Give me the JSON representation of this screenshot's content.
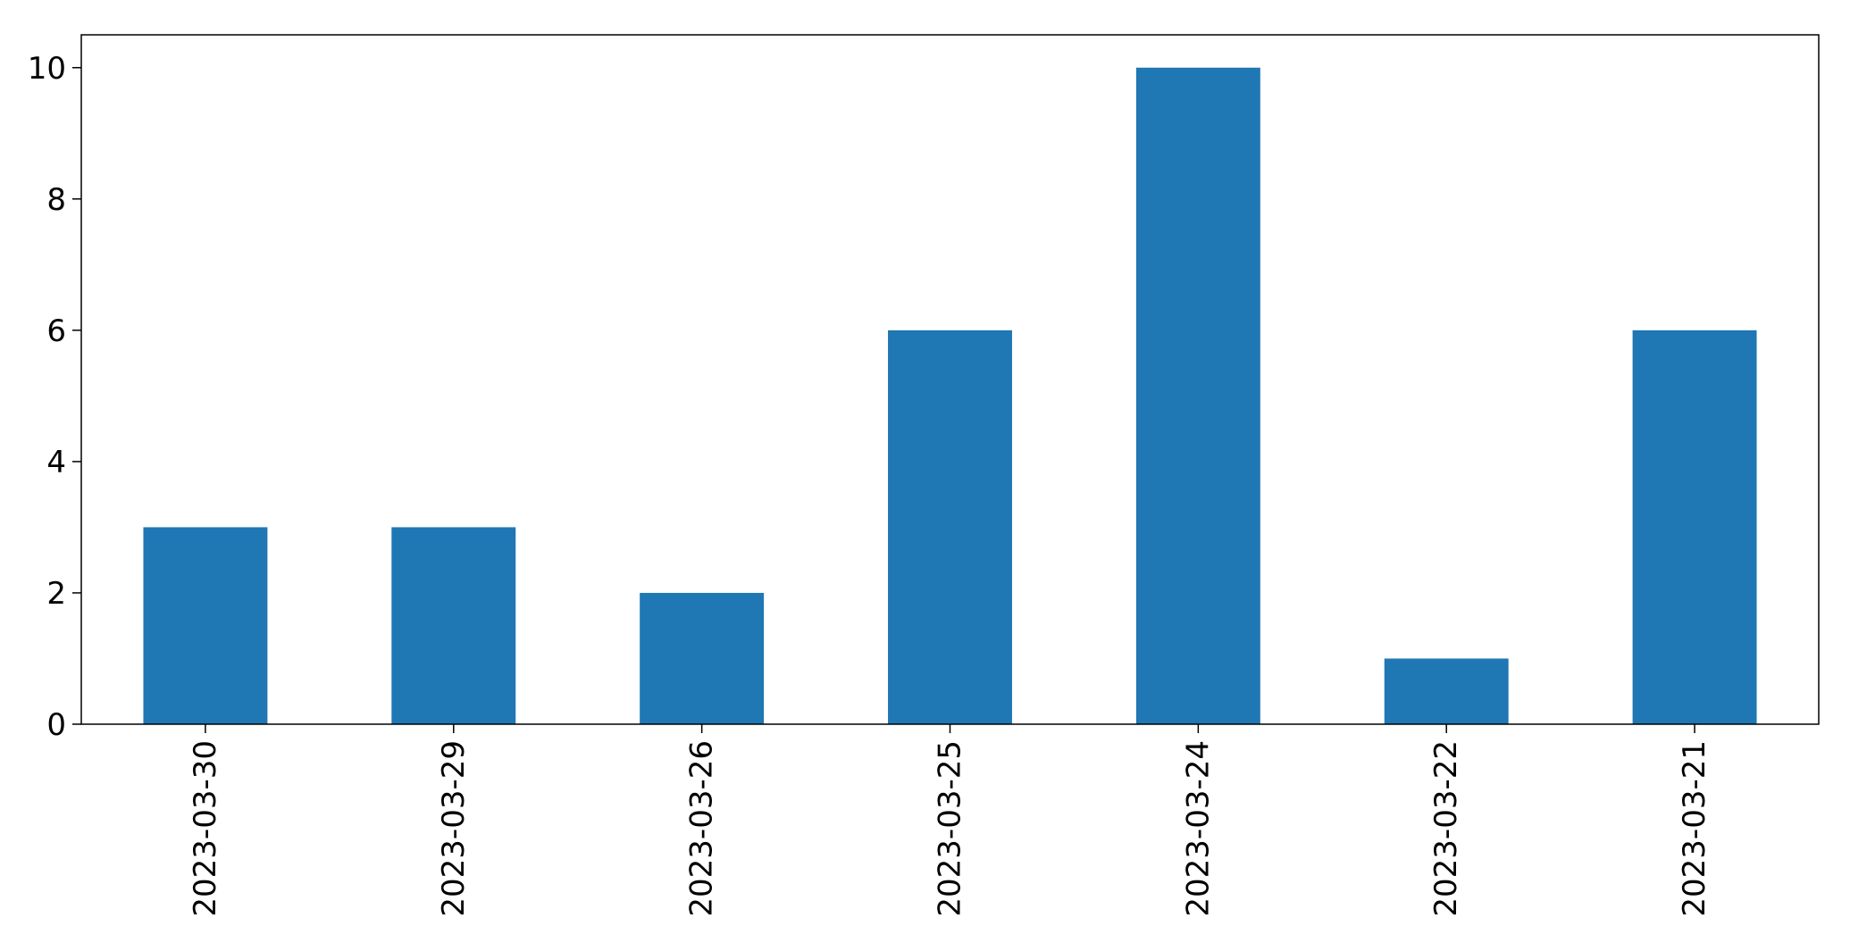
{
  "chart_data": {
    "type": "bar",
    "categories": [
      "2023-03-30",
      "2023-03-29",
      "2023-03-26",
      "2023-03-25",
      "2023-03-24",
      "2023-03-22",
      "2023-03-21"
    ],
    "values": [
      3,
      3,
      2,
      6,
      10,
      1,
      6
    ],
    "title": "",
    "xlabel": "",
    "ylabel": "",
    "ylim": [
      0,
      10.5
    ],
    "yticks": [
      0,
      2,
      4,
      6,
      8,
      10
    ],
    "grid": false,
    "legend": "none",
    "bar_color": "#1f77b4"
  }
}
